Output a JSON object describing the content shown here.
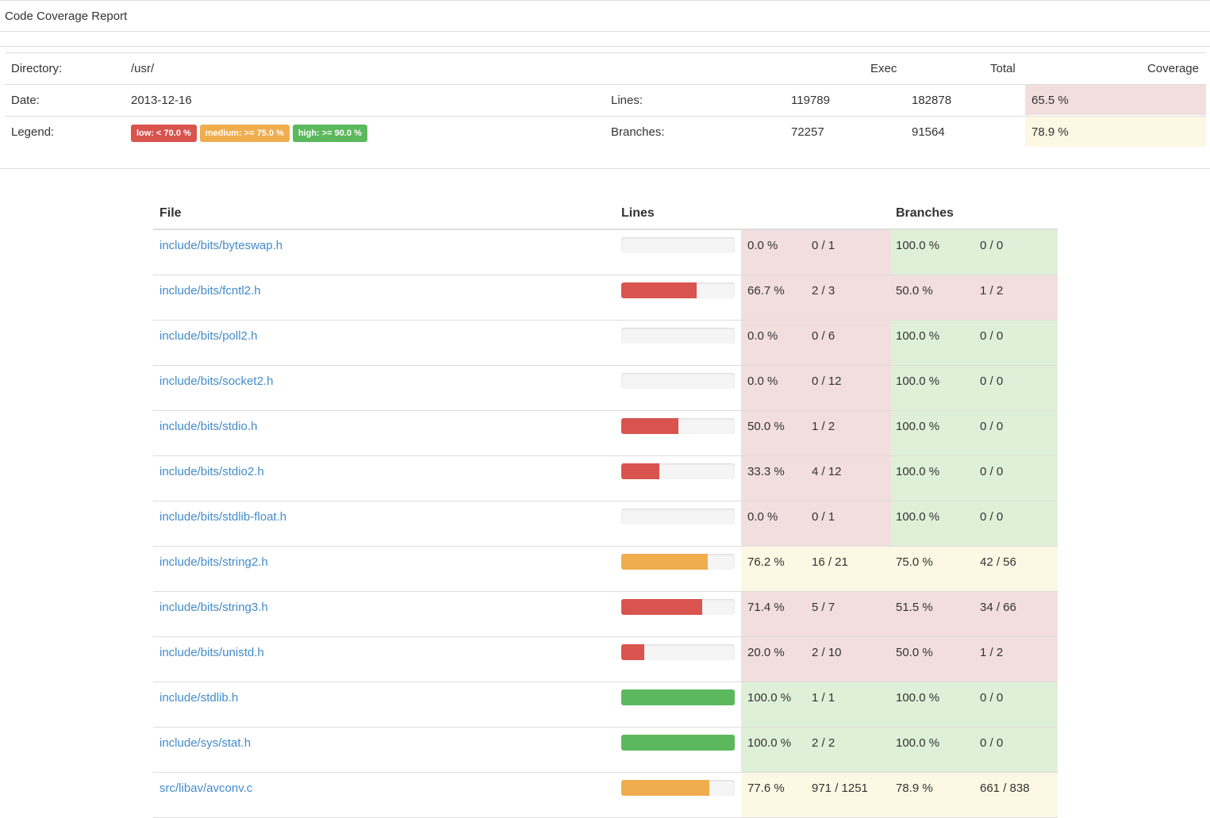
{
  "header": {
    "title": "Code Coverage Report"
  },
  "summary": {
    "directory_label": "Directory:",
    "directory_value": "/usr/",
    "date_label": "Date:",
    "date_value": "2013-12-16",
    "legend_label": "Legend:",
    "legend": [
      {
        "text": "low: < 70.0 %",
        "level": "low"
      },
      {
        "text": "medium: >= 75.0 %",
        "level": "med"
      },
      {
        "text": "high: >= 90.0 %",
        "level": "high"
      }
    ],
    "col_exec": "Exec",
    "col_total": "Total",
    "col_coverage": "Coverage",
    "lines": {
      "label": "Lines:",
      "exec": "119789",
      "total": "182878",
      "coverage": "65.5 %",
      "level": "low"
    },
    "branches": {
      "label": "Branches:",
      "exec": "72257",
      "total": "91564",
      "coverage": "78.9 %",
      "level": "med"
    }
  },
  "files": {
    "col_file": "File",
    "col_lines": "Lines",
    "col_branches": "Branches",
    "rows": [
      {
        "name": "include/bits/byteswap.h",
        "line_pct": 0.0,
        "line_cov": "0.0 %",
        "line_count": "0 / 1",
        "line_level": "low",
        "branch_cov": "100.0 %",
        "branch_count": "0 / 0",
        "branch_level": "high"
      },
      {
        "name": "include/bits/fcntl2.h",
        "line_pct": 66.7,
        "line_cov": "66.7 %",
        "line_count": "2 / 3",
        "line_level": "low",
        "branch_cov": "50.0 %",
        "branch_count": "1 / 2",
        "branch_level": "low"
      },
      {
        "name": "include/bits/poll2.h",
        "line_pct": 0.0,
        "line_cov": "0.0 %",
        "line_count": "0 / 6",
        "line_level": "low",
        "branch_cov": "100.0 %",
        "branch_count": "0 / 0",
        "branch_level": "high"
      },
      {
        "name": "include/bits/socket2.h",
        "line_pct": 0.0,
        "line_cov": "0.0 %",
        "line_count": "0 / 12",
        "line_level": "low",
        "branch_cov": "100.0 %",
        "branch_count": "0 / 0",
        "branch_level": "high"
      },
      {
        "name": "include/bits/stdio.h",
        "line_pct": 50.0,
        "line_cov": "50.0 %",
        "line_count": "1 / 2",
        "line_level": "low",
        "branch_cov": "100.0 %",
        "branch_count": "0 / 0",
        "branch_level": "high"
      },
      {
        "name": "include/bits/stdio2.h",
        "line_pct": 33.3,
        "line_cov": "33.3 %",
        "line_count": "4 / 12",
        "line_level": "low",
        "branch_cov": "100.0 %",
        "branch_count": "0 / 0",
        "branch_level": "high"
      },
      {
        "name": "include/bits/stdlib-float.h",
        "line_pct": 0.0,
        "line_cov": "0.0 %",
        "line_count": "0 / 1",
        "line_level": "low",
        "branch_cov": "100.0 %",
        "branch_count": "0 / 0",
        "branch_level": "high"
      },
      {
        "name": "include/bits/string2.h",
        "line_pct": 76.2,
        "line_cov": "76.2 %",
        "line_count": "16 / 21",
        "line_level": "med",
        "branch_cov": "75.0 %",
        "branch_count": "42 / 56",
        "branch_level": "med"
      },
      {
        "name": "include/bits/string3.h",
        "line_pct": 71.4,
        "line_cov": "71.4 %",
        "line_count": "5 / 7",
        "line_level": "low",
        "branch_cov": "51.5 %",
        "branch_count": "34 / 66",
        "branch_level": "low"
      },
      {
        "name": "include/bits/unistd.h",
        "line_pct": 20.0,
        "line_cov": "20.0 %",
        "line_count": "2 / 10",
        "line_level": "low",
        "branch_cov": "50.0 %",
        "branch_count": "1 / 2",
        "branch_level": "low"
      },
      {
        "name": "include/stdlib.h",
        "line_pct": 100.0,
        "line_cov": "100.0 %",
        "line_count": "1 / 1",
        "line_level": "high",
        "branch_cov": "100.0 %",
        "branch_count": "0 / 0",
        "branch_level": "high"
      },
      {
        "name": "include/sys/stat.h",
        "line_pct": 100.0,
        "line_cov": "100.0 %",
        "line_count": "2 / 2",
        "line_level": "high",
        "branch_cov": "100.0 %",
        "branch_count": "0 / 0",
        "branch_level": "high"
      },
      {
        "name": "src/libav/avconv.c",
        "line_pct": 77.6,
        "line_cov": "77.6 %",
        "line_count": "971 / 1251",
        "line_level": "med",
        "branch_cov": "78.9 %",
        "branch_count": "661 / 838",
        "branch_level": "med"
      }
    ]
  }
}
